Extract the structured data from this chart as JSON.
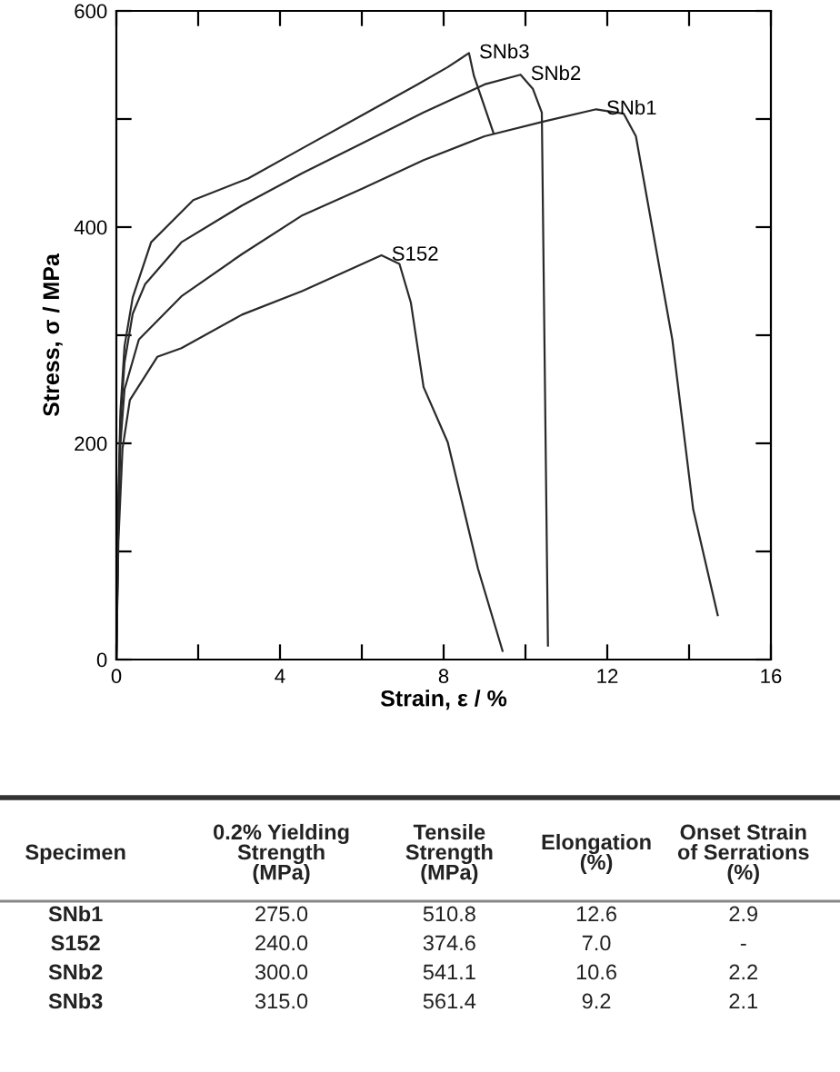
{
  "chart_data": {
    "type": "line",
    "xlabel": "Strain, ε / %",
    "ylabel": "Stress, σ / MPa",
    "xlim": [
      0,
      16
    ],
    "ylim": [
      0,
      600
    ],
    "xticks": [
      0,
      {
        "value": 2,
        "label": null
      },
      4,
      {
        "value": 6,
        "label": null
      },
      8,
      {
        "value": 10,
        "label": null
      },
      12,
      {
        "value": 14,
        "label": null
      },
      16
    ],
    "yticks": [
      0,
      {
        "value": 100,
        "label": null
      },
      200,
      {
        "value": 300,
        "label": null
      },
      400,
      {
        "value": 500,
        "label": null
      },
      600
    ],
    "grid": false,
    "legend": false,
    "marker": "none",
    "line_style": "solid",
    "series": [
      {
        "name": "SNb3",
        "color": "#2a2a2a",
        "x": [
          0,
          0.05,
          0.1,
          0.2,
          0.4,
          0.85,
          1.88,
          3.22,
          4.55,
          6.03,
          7.36,
          8.1,
          8.62,
          8.74,
          9.22
        ],
        "values": [
          0,
          150,
          230,
          290,
          335,
          386,
          425,
          445,
          473,
          504,
          532,
          548,
          561,
          540,
          487
        ]
      },
      {
        "name": "SNb2",
        "color": "#2a2a2a",
        "x": [
          0,
          0.05,
          0.1,
          0.2,
          0.4,
          0.7,
          1.59,
          3.07,
          4.55,
          6.03,
          7.51,
          9.0,
          9.88,
          10.18,
          10.4,
          10.55
        ],
        "values": [
          0,
          140,
          220,
          275,
          320,
          347,
          386,
          420,
          450,
          478,
          506,
          532,
          541,
          528,
          506,
          13
        ]
      },
      {
        "name": "SNb1",
        "color": "#2a2a2a",
        "x": [
          0,
          0.05,
          0.1,
          0.2,
          0.55,
          1.59,
          3.07,
          4.55,
          6.03,
          7.51,
          9.0,
          10.48,
          11.73,
          12.4,
          12.7,
          13.59,
          14.1,
          14.7
        ],
        "values": [
          0,
          130,
          200,
          250,
          296,
          336,
          375,
          411,
          436,
          462,
          484,
          498,
          509,
          505,
          484,
          296,
          139,
          41
        ]
      },
      {
        "name": "S152",
        "color": "#2a2a2a",
        "x": [
          0,
          0.05,
          0.15,
          0.33,
          1.0,
          1.59,
          3.07,
          4.55,
          6.48,
          6.92,
          7.2,
          7.51,
          8.1,
          8.84,
          9.44
        ],
        "values": [
          0,
          110,
          195,
          240,
          280,
          288,
          319,
          341,
          374,
          366,
          330,
          252,
          201,
          84,
          8
        ]
      }
    ],
    "annotations": [
      "Specimen",
      "0.2% Yielding\nStrength\n(MPa)",
      "Tensile\nStrength\n(MPa)",
      "Elongation\n(%)",
      "Onset Strain\nof Serrations\n(%)",
      "SNb1",
      "275.0",
      "510.8",
      "12.6",
      "2.9",
      "S152",
      "240.0",
      "374.6",
      "7.0",
      "-",
      "SNb2",
      "300.0",
      "541.1",
      "10.6",
      "2.2",
      "SNb3",
      "315.0",
      "561.4",
      "9.2",
      "2.1"
    ]
  }
}
